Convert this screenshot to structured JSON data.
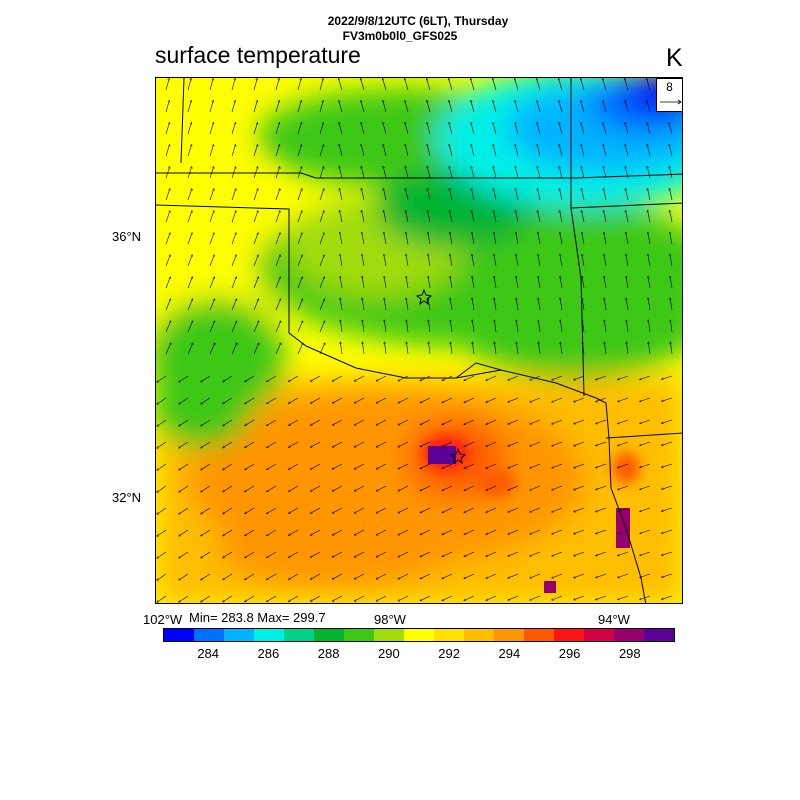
{
  "header": {
    "line1": "2022/9/8/12UTC (6LT), Thursday",
    "line2": "FV3m0b0l0_GFS025"
  },
  "plot": {
    "title": "surface temperature",
    "units": "K",
    "min_max": "Min= 283.8 Max= 299.7",
    "reference_vector": "8"
  },
  "axes": {
    "lat_labels": [
      "36°N",
      "32°N"
    ],
    "lon_labels": [
      "102°W",
      "98°W",
      "94°W"
    ]
  },
  "colorbar": {
    "colors": [
      "#0000ff",
      "#0070ff",
      "#00b4ff",
      "#00f0e6",
      "#00d28c",
      "#00b430",
      "#3cc814",
      "#a0dc0a",
      "#ffff00",
      "#ffe100",
      "#ffbe00",
      "#ff9600",
      "#ff5a00",
      "#ff1414",
      "#d20046",
      "#96006e",
      "#5a0096"
    ],
    "labels": [
      "284",
      "286",
      "288",
      "290",
      "292",
      "294",
      "296",
      "298"
    ]
  }
}
